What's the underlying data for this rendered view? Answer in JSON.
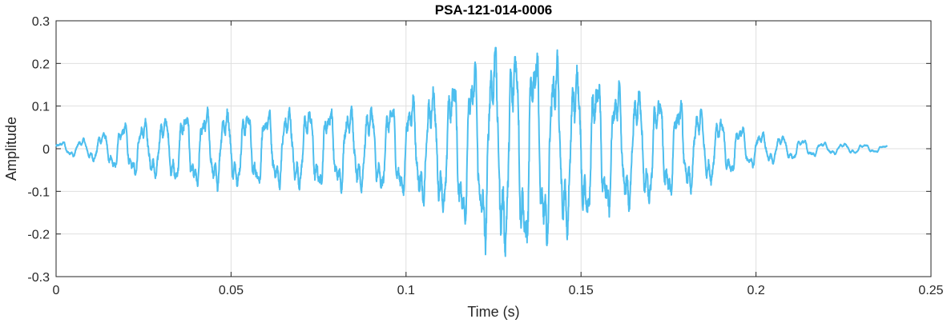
{
  "chart_data": {
    "type": "line",
    "title": "PSA-121-014-0006",
    "xlabel": "Time (s)",
    "ylabel": "Amplitude",
    "xlim": [
      0,
      0.25
    ],
    "ylim": [
      -0.3,
      0.3
    ],
    "xticks": [
      0,
      0.05,
      0.1,
      0.15,
      0.2,
      0.25
    ],
    "xtick_labels": [
      "0",
      "0.05",
      "0.1",
      "0.15",
      "0.2",
      "0.25"
    ],
    "yticks": [
      -0.3,
      -0.2,
      -0.1,
      0,
      0.1,
      0.2,
      0.3
    ],
    "ytick_labels": [
      "-0.3",
      "-0.2",
      "-0.1",
      "0",
      "0.1",
      "0.2",
      "0.3"
    ],
    "grid": true,
    "series": [
      {
        "color": "#4DBEEE",
        "duration": 0.2375,
        "envelope": [
          [
            0.0,
            0.018
          ],
          [
            0.005,
            0.02
          ],
          [
            0.01,
            0.03
          ],
          [
            0.015,
            0.05
          ],
          [
            0.02,
            0.07
          ],
          [
            0.03,
            0.08
          ],
          [
            0.04,
            0.105
          ],
          [
            0.05,
            0.1
          ],
          [
            0.06,
            0.1
          ],
          [
            0.07,
            0.105
          ],
          [
            0.08,
            0.11
          ],
          [
            0.09,
            0.11
          ],
          [
            0.1,
            0.13
          ],
          [
            0.11,
            0.17
          ],
          [
            0.12,
            0.23
          ],
          [
            0.125,
            0.28
          ],
          [
            0.13,
            0.27
          ],
          [
            0.135,
            0.29
          ],
          [
            0.14,
            0.26
          ],
          [
            0.15,
            0.21
          ],
          [
            0.16,
            0.17
          ],
          [
            0.17,
            0.15
          ],
          [
            0.18,
            0.12
          ],
          [
            0.19,
            0.08
          ],
          [
            0.2,
            0.045
          ],
          [
            0.21,
            0.03
          ],
          [
            0.22,
            0.015
          ],
          [
            0.23,
            0.012
          ],
          [
            0.2375,
            0.008
          ]
        ]
      }
    ]
  }
}
